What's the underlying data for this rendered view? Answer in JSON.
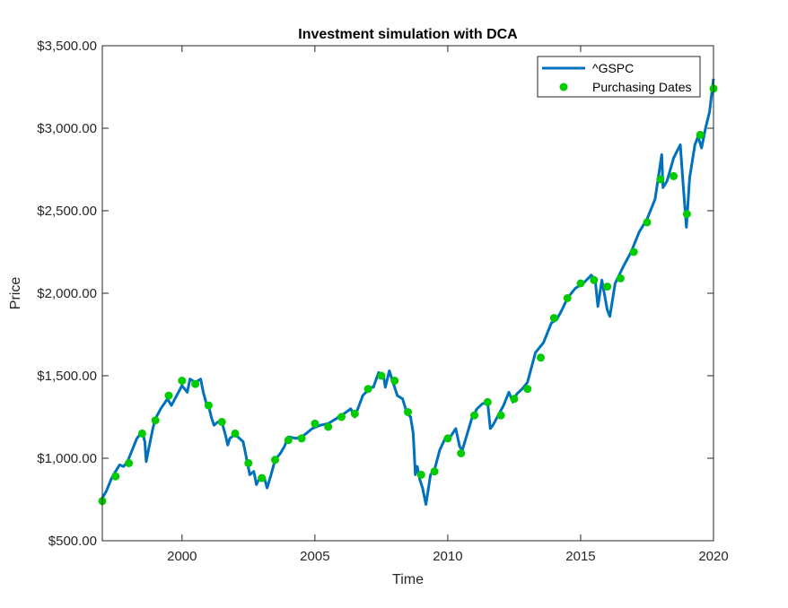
{
  "chart_data": {
    "type": "line",
    "title": "Investment simulation with DCA",
    "xlabel": "Time",
    "ylabel": "Price",
    "xlim": [
      1997.0,
      2020.0
    ],
    "ylim": [
      500,
      3500
    ],
    "x_ticks": [
      2000,
      2005,
      2010,
      2015,
      2020
    ],
    "x_tick_labels": [
      "2000",
      "2005",
      "2010",
      "2015",
      "2020"
    ],
    "y_ticks": [
      500,
      1000,
      1500,
      2000,
      2500,
      3000,
      3500
    ],
    "y_tick_labels": [
      "$500.00",
      "$1,000.00",
      "$1,500.00",
      "$2,000.00",
      "$2,500.00",
      "$3,000.00",
      "$3,500.00"
    ],
    "grid": false,
    "legend_position": "top-right",
    "series": [
      {
        "name": "^GSPC",
        "kind": "line",
        "color": "#0072BD",
        "x": [
          1997.0,
          1997.15,
          1997.35,
          1997.5,
          1997.65,
          1997.8,
          1997.95,
          1998.1,
          1998.3,
          1998.5,
          1998.6,
          1998.65,
          1998.75,
          1998.9,
          1999.0,
          1999.2,
          1999.45,
          1999.6,
          1999.8,
          2000.0,
          2000.2,
          2000.3,
          2000.5,
          2000.7,
          2000.8,
          2000.9,
          2001.0,
          2001.1,
          2001.2,
          2001.35,
          2001.5,
          2001.65,
          2001.72,
          2001.8,
          2001.95,
          2002.1,
          2002.3,
          2002.45,
          2002.55,
          2002.7,
          2002.8,
          2002.95,
          2003.1,
          2003.2,
          2003.35,
          2003.5,
          2003.7,
          2003.85,
          2004.0,
          2004.3,
          2004.6,
          2004.9,
          2005.2,
          2005.5,
          2005.8,
          2006.1,
          2006.35,
          2006.5,
          2006.8,
          2007.1,
          2007.2,
          2007.4,
          2007.6,
          2007.65,
          2007.8,
          2007.9,
          2008.1,
          2008.3,
          2008.45,
          2008.6,
          2008.7,
          2008.78,
          2008.85,
          2008.95,
          2009.05,
          2009.18,
          2009.35,
          2009.5,
          2009.7,
          2009.9,
          2010.1,
          2010.3,
          2010.45,
          2010.55,
          2010.7,
          2010.9,
          2011.1,
          2011.3,
          2011.5,
          2011.6,
          2011.7,
          2011.9,
          2012.1,
          2012.3,
          2012.45,
          2012.6,
          2012.8,
          2013.0,
          2013.3,
          2013.6,
          2013.9,
          2014.1,
          2014.3,
          2014.5,
          2014.8,
          2015.1,
          2015.4,
          2015.55,
          2015.65,
          2015.8,
          2016.0,
          2016.1,
          2016.3,
          2016.6,
          2016.9,
          2017.2,
          2017.5,
          2017.8,
          2018.05,
          2018.1,
          2018.25,
          2018.5,
          2018.75,
          2018.85,
          2018.98,
          2019.1,
          2019.3,
          2019.42,
          2019.55,
          2019.7,
          2019.85,
          2020.0
        ],
        "y": [
          760,
          800,
          880,
          920,
          960,
          950,
          980,
          1040,
          1120,
          1160,
          1100,
          980,
          1060,
          1180,
          1240,
          1300,
          1360,
          1320,
          1380,
          1440,
          1400,
          1480,
          1460,
          1480,
          1400,
          1340,
          1320,
          1250,
          1200,
          1220,
          1220,
          1130,
          1080,
          1120,
          1140,
          1130,
          1100,
          980,
          900,
          920,
          840,
          890,
          880,
          820,
          900,
          990,
          1030,
          1070,
          1130,
          1120,
          1140,
          1180,
          1200,
          1210,
          1240,
          1270,
          1300,
          1250,
          1380,
          1430,
          1430,
          1520,
          1480,
          1430,
          1530,
          1480,
          1380,
          1360,
          1280,
          1250,
          1150,
          900,
          950,
          870,
          820,
          720,
          900,
          930,
          1050,
          1120,
          1130,
          1180,
          1070,
          1050,
          1130,
          1240,
          1300,
          1330,
          1340,
          1180,
          1200,
          1260,
          1320,
          1400,
          1340,
          1390,
          1420,
          1460,
          1640,
          1700,
          1820,
          1840,
          1900,
          1970,
          2030,
          2060,
          2110,
          2080,
          1920,
          2080,
          1900,
          1860,
          2060,
          2160,
          2250,
          2370,
          2450,
          2570,
          2840,
          2640,
          2680,
          2820,
          2900,
          2680,
          2400,
          2700,
          2900,
          2950,
          2880,
          3000,
          3100,
          3300
        ]
      },
      {
        "name": "Purchasing Dates",
        "kind": "markers",
        "color": "#00CC00",
        "x": [
          1997.0,
          1997.5,
          1998.0,
          1998.5,
          1999.0,
          1999.5,
          2000.0,
          2000.5,
          2001.0,
          2001.5,
          2002.0,
          2002.5,
          2003.0,
          2003.5,
          2004.0,
          2004.5,
          2005.0,
          2005.5,
          2006.0,
          2006.5,
          2007.0,
          2007.5,
          2008.0,
          2008.5,
          2009.0,
          2009.5,
          2010.0,
          2010.5,
          2011.0,
          2011.5,
          2012.0,
          2012.5,
          2013.0,
          2013.5,
          2014.0,
          2014.5,
          2015.0,
          2015.5,
          2016.0,
          2016.5,
          2017.0,
          2017.5,
          2018.0,
          2018.5,
          2019.0,
          2019.5,
          2020.0
        ],
        "y": [
          740,
          890,
          970,
          1150,
          1230,
          1380,
          1470,
          1450,
          1320,
          1220,
          1150,
          970,
          880,
          990,
          1110,
          1120,
          1210,
          1190,
          1250,
          1270,
          1420,
          1500,
          1470,
          1280,
          900,
          920,
          1120,
          1030,
          1260,
          1340,
          1260,
          1360,
          1420,
          1610,
          1850,
          1970,
          2060,
          2080,
          2040,
          2090,
          2250,
          2430,
          2690,
          2710,
          2480,
          2960,
          3240
        ]
      }
    ]
  }
}
